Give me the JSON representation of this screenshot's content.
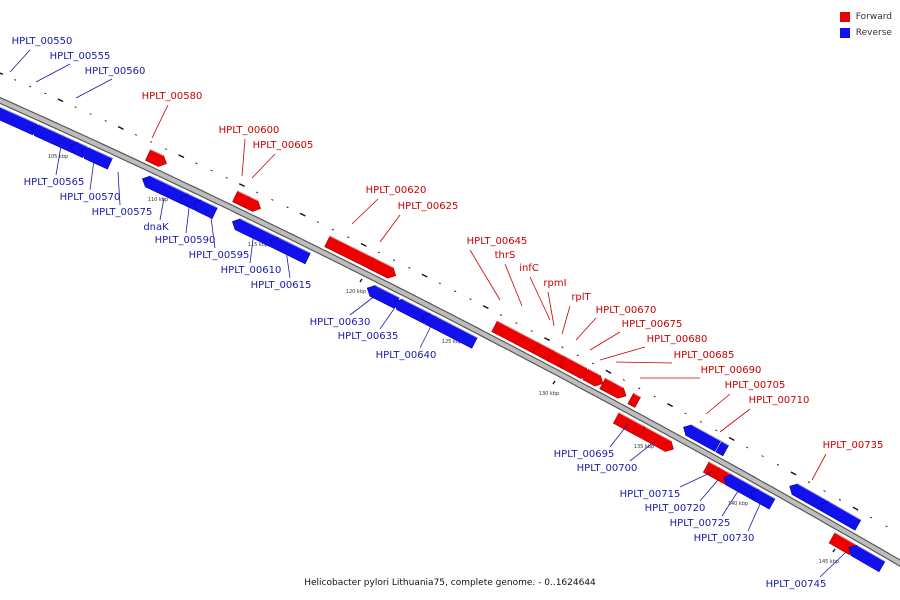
{
  "legend": {
    "forward_label": "Forward",
    "reverse_label": "Reverse",
    "forward_color": "#ee0000",
    "reverse_color": "#1111ee"
  },
  "caption": "Helicobacter pylori Lithuania75, complete genome. - 0..1624644",
  "tick_labels": [
    "105 kbp",
    "110 kbp",
    "115 kbp",
    "120 kbp",
    "125 kbp",
    "130 kbp",
    "135 kbp",
    "140 kbp",
    "145 kbp"
  ],
  "colors": {
    "forward_label": "#cc0000",
    "reverse_label": "#1a1aaa",
    "backbone": "#777777"
  },
  "genes": [
    {
      "label": "HPLT_00550",
      "strand": "reverse"
    },
    {
      "label": "HPLT_00555",
      "strand": "reverse"
    },
    {
      "label": "HPLT_00560",
      "strand": "reverse"
    },
    {
      "label": "HPLT_00565",
      "strand": "reverse"
    },
    {
      "label": "HPLT_00570",
      "strand": "reverse"
    },
    {
      "label": "HPLT_00575",
      "strand": "reverse"
    },
    {
      "label": "HPLT_00580",
      "strand": "forward"
    },
    {
      "label": "dnaK",
      "strand": "reverse"
    },
    {
      "label": "HPLT_00590",
      "strand": "reverse"
    },
    {
      "label": "HPLT_00595",
      "strand": "reverse"
    },
    {
      "label": "HPLT_00600",
      "strand": "forward"
    },
    {
      "label": "HPLT_00605",
      "strand": "forward"
    },
    {
      "label": "HPLT_00610",
      "strand": "reverse"
    },
    {
      "label": "HPLT_00615",
      "strand": "reverse"
    },
    {
      "label": "HPLT_00620",
      "strand": "forward"
    },
    {
      "label": "HPLT_00625",
      "strand": "forward"
    },
    {
      "label": "HPLT_00630",
      "strand": "reverse"
    },
    {
      "label": "HPLT_00635",
      "strand": "reverse"
    },
    {
      "label": "HPLT_00640",
      "strand": "reverse"
    },
    {
      "label": "HPLT_00645",
      "strand": "forward"
    },
    {
      "label": "thrS",
      "strand": "forward"
    },
    {
      "label": "infC",
      "strand": "forward"
    },
    {
      "label": "rpmI",
      "strand": "forward"
    },
    {
      "label": "rplT",
      "strand": "forward"
    },
    {
      "label": "HPLT_00670",
      "strand": "forward"
    },
    {
      "label": "HPLT_00675",
      "strand": "forward"
    },
    {
      "label": "HPLT_00680",
      "strand": "forward"
    },
    {
      "label": "HPLT_00685",
      "strand": "forward"
    },
    {
      "label": "HPLT_00690",
      "strand": "forward"
    },
    {
      "label": "HPLT_00695",
      "strand": "reverse"
    },
    {
      "label": "HPLT_00700",
      "strand": "reverse"
    },
    {
      "label": "HPLT_00705",
      "strand": "forward"
    },
    {
      "label": "HPLT_00710",
      "strand": "forward"
    },
    {
      "label": "HPLT_00715",
      "strand": "reverse"
    },
    {
      "label": "HPLT_00720",
      "strand": "reverse"
    },
    {
      "label": "HPLT_00725",
      "strand": "reverse"
    },
    {
      "label": "HPLT_00730",
      "strand": "reverse"
    },
    {
      "label": "HPLT_00735",
      "strand": "forward"
    },
    {
      "label": "HPLT_00745",
      "strand": "reverse"
    }
  ]
}
